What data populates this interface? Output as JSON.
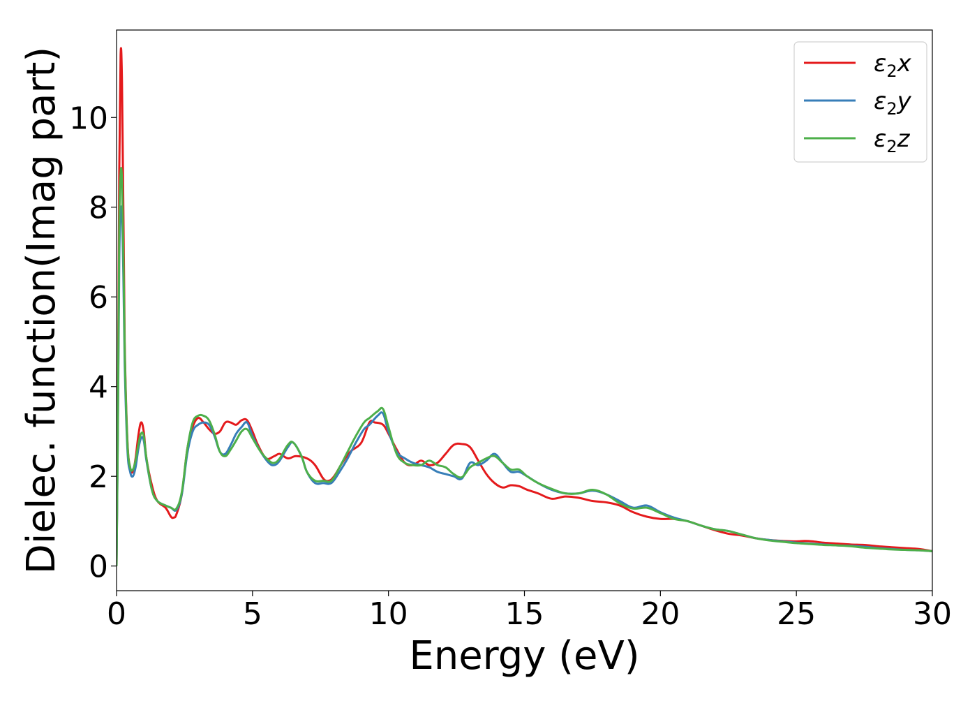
{
  "chart_data": {
    "type": "line",
    "title": "",
    "xlabel": "Energy (eV)",
    "ylabel": "Dielec. function(Imag part)",
    "xlim": [
      0,
      30
    ],
    "ylim": [
      -0.55,
      11.95
    ],
    "xticks": [
      0,
      5,
      10,
      15,
      20,
      25,
      30
    ],
    "yticks": [
      0,
      2,
      4,
      6,
      8,
      10
    ],
    "xtick_labels": [
      "0",
      "5",
      "10",
      "15",
      "20",
      "25",
      "30"
    ],
    "ytick_labels": [
      "0",
      "2",
      "4",
      "6",
      "8",
      "10"
    ],
    "grid": false,
    "legend_position": "top-right",
    "series": [
      {
        "name": "ε2x",
        "legend_base": "ε",
        "legend_sub": "2",
        "legend_var": "x",
        "color": "#e41a1c",
        "x": [
          0,
          0.05,
          0.1,
          0.15,
          0.2,
          0.25,
          0.3,
          0.4,
          0.5,
          0.6,
          0.7,
          0.8,
          0.9,
          1.0,
          1.1,
          1.3,
          1.5,
          1.8,
          2.0,
          2.1,
          2.2,
          2.4,
          2.6,
          2.8,
          3.0,
          3.2,
          3.4,
          3.6,
          3.8,
          4.0,
          4.2,
          4.4,
          4.6,
          4.8,
          5.0,
          5.2,
          5.5,
          5.8,
          6.0,
          6.3,
          6.6,
          7.0,
          7.3,
          7.6,
          7.8,
          8.0,
          8.3,
          8.6,
          9.0,
          9.3,
          9.5,
          9.8,
          10.0,
          10.3,
          10.6,
          10.9,
          11.2,
          11.5,
          11.8,
          12.1,
          12.4,
          12.7,
          13.0,
          13.3,
          13.6,
          13.9,
          14.2,
          14.5,
          14.8,
          15.1,
          15.5,
          16.0,
          16.5,
          17.0,
          17.5,
          18.0,
          18.5,
          19.0,
          19.5,
          20.0,
          20.5,
          21.0,
          21.5,
          22.0,
          22.5,
          23.0,
          23.5,
          24.0,
          24.5,
          25.0,
          25.3,
          25.6,
          26.0,
          26.5,
          27.0,
          27.5,
          28.0,
          28.5,
          29.0,
          29.5,
          30.0
        ],
        "values": [
          0,
          3.5,
          8.8,
          11.4,
          10.8,
          8.0,
          5.0,
          2.8,
          2.2,
          2.1,
          2.4,
          2.9,
          3.2,
          3.0,
          2.4,
          1.8,
          1.45,
          1.3,
          1.1,
          1.08,
          1.15,
          1.6,
          2.6,
          3.1,
          3.3,
          3.2,
          3.05,
          2.95,
          3.0,
          3.2,
          3.2,
          3.15,
          3.25,
          3.25,
          3.0,
          2.7,
          2.4,
          2.45,
          2.5,
          2.4,
          2.45,
          2.4,
          2.25,
          1.95,
          1.9,
          2.0,
          2.3,
          2.55,
          2.75,
          3.2,
          3.2,
          3.15,
          2.95,
          2.6,
          2.3,
          2.25,
          2.35,
          2.25,
          2.3,
          2.5,
          2.7,
          2.72,
          2.65,
          2.35,
          2.05,
          1.85,
          1.75,
          1.8,
          1.78,
          1.7,
          1.62,
          1.5,
          1.55,
          1.52,
          1.45,
          1.42,
          1.35,
          1.2,
          1.1,
          1.05,
          1.05,
          1.0,
          0.9,
          0.8,
          0.72,
          0.68,
          0.62,
          0.58,
          0.56,
          0.55,
          0.56,
          0.55,
          0.52,
          0.5,
          0.48,
          0.47,
          0.44,
          0.42,
          0.4,
          0.38,
          0.33
        ]
      },
      {
        "name": "ε2y",
        "legend_base": "ε",
        "legend_sub": "2",
        "legend_var": "y",
        "color": "#377eb8",
        "x": [
          0,
          0.05,
          0.1,
          0.15,
          0.2,
          0.25,
          0.3,
          0.4,
          0.5,
          0.6,
          0.7,
          0.8,
          0.9,
          1.0,
          1.1,
          1.3,
          1.5,
          1.8,
          2.0,
          2.2,
          2.4,
          2.6,
          2.8,
          3.0,
          3.2,
          3.4,
          3.6,
          3.8,
          4.0,
          4.2,
          4.4,
          4.6,
          4.8,
          5.0,
          5.3,
          5.6,
          5.8,
          6.0,
          6.3,
          6.5,
          6.8,
          7.0,
          7.3,
          7.6,
          7.9,
          8.2,
          8.5,
          8.8,
          9.1,
          9.3,
          9.6,
          9.8,
          10.0,
          10.3,
          10.6,
          10.9,
          11.2,
          11.5,
          11.8,
          12.1,
          12.4,
          12.7,
          13.0,
          13.3,
          13.6,
          13.9,
          14.2,
          14.5,
          14.8,
          15.1,
          15.5,
          16.0,
          16.5,
          17.0,
          17.5,
          18.0,
          18.5,
          19.0,
          19.5,
          20.0,
          20.5,
          21.0,
          21.5,
          22.0,
          22.5,
          23.0,
          23.5,
          24.0,
          24.5,
          25.0,
          25.5,
          26.0,
          26.5,
          27.0,
          27.5,
          28.0,
          28.5,
          29.0,
          29.5,
          30.0
        ],
        "values": [
          0,
          3.0,
          6.8,
          7.9,
          7.8,
          6.5,
          4.5,
          2.6,
          2.1,
          2.0,
          2.2,
          2.6,
          2.85,
          2.8,
          2.35,
          1.7,
          1.45,
          1.35,
          1.3,
          1.25,
          1.6,
          2.5,
          3.0,
          3.15,
          3.2,
          3.15,
          2.9,
          2.55,
          2.5,
          2.7,
          2.95,
          3.1,
          3.2,
          2.9,
          2.55,
          2.3,
          2.25,
          2.35,
          2.65,
          2.75,
          2.45,
          2.1,
          1.85,
          1.85,
          1.85,
          2.1,
          2.4,
          2.75,
          3.05,
          3.15,
          3.35,
          3.4,
          3.0,
          2.55,
          2.4,
          2.3,
          2.25,
          2.2,
          2.1,
          2.05,
          2.0,
          1.95,
          2.3,
          2.25,
          2.35,
          2.5,
          2.3,
          2.1,
          2.1,
          2.0,
          1.85,
          1.7,
          1.62,
          1.62,
          1.68,
          1.6,
          1.45,
          1.3,
          1.35,
          1.2,
          1.08,
          1.0,
          0.9,
          0.82,
          0.78,
          0.7,
          0.62,
          0.58,
          0.55,
          0.52,
          0.5,
          0.48,
          0.46,
          0.45,
          0.43,
          0.4,
          0.38,
          0.36,
          0.35,
          0.33
        ]
      },
      {
        "name": "ε2z",
        "legend_base": "ε",
        "legend_sub": "2",
        "legend_var": "z",
        "color": "#4daf4a",
        "x": [
          0,
          0.05,
          0.1,
          0.15,
          0.2,
          0.25,
          0.3,
          0.4,
          0.5,
          0.6,
          0.7,
          0.8,
          0.9,
          1.0,
          1.1,
          1.3,
          1.5,
          1.8,
          2.0,
          2.2,
          2.4,
          2.6,
          2.8,
          3.0,
          3.2,
          3.4,
          3.6,
          3.8,
          4.0,
          4.2,
          4.4,
          4.6,
          4.8,
          5.0,
          5.3,
          5.6,
          5.8,
          6.0,
          6.3,
          6.5,
          6.8,
          7.0,
          7.3,
          7.6,
          7.9,
          8.2,
          8.5,
          8.8,
          9.1,
          9.3,
          9.6,
          9.8,
          10.0,
          10.3,
          10.6,
          10.9,
          11.2,
          11.5,
          11.8,
          12.1,
          12.4,
          12.7,
          13.0,
          13.3,
          13.6,
          13.9,
          14.2,
          14.5,
          14.8,
          15.1,
          15.5,
          16.0,
          16.5,
          17.0,
          17.5,
          18.0,
          18.5,
          19.0,
          19.5,
          20.0,
          20.5,
          21.0,
          21.5,
          22.0,
          22.5,
          23.0,
          23.5,
          24.0,
          24.5,
          25.0,
          25.5,
          26.0,
          26.5,
          27.0,
          27.5,
          28.0,
          28.5,
          29.0,
          29.5,
          30.0
        ],
        "values": [
          0,
          3.2,
          7.5,
          8.75,
          8.6,
          7.0,
          4.8,
          2.75,
          2.2,
          2.15,
          2.35,
          2.7,
          2.95,
          2.9,
          2.4,
          1.7,
          1.45,
          1.35,
          1.3,
          1.28,
          1.65,
          2.6,
          3.2,
          3.35,
          3.35,
          3.25,
          2.95,
          2.55,
          2.45,
          2.6,
          2.8,
          3.0,
          3.05,
          2.85,
          2.55,
          2.35,
          2.3,
          2.4,
          2.7,
          2.75,
          2.45,
          2.1,
          1.9,
          1.9,
          1.9,
          2.2,
          2.55,
          2.9,
          3.2,
          3.3,
          3.45,
          3.5,
          3.1,
          2.5,
          2.3,
          2.25,
          2.25,
          2.35,
          2.25,
          2.2,
          2.05,
          1.98,
          2.2,
          2.3,
          2.4,
          2.45,
          2.3,
          2.15,
          2.15,
          2.0,
          1.85,
          1.72,
          1.62,
          1.62,
          1.7,
          1.6,
          1.4,
          1.28,
          1.3,
          1.18,
          1.05,
          1.0,
          0.9,
          0.82,
          0.78,
          0.7,
          0.62,
          0.57,
          0.54,
          0.51,
          0.49,
          0.47,
          0.46,
          0.44,
          0.41,
          0.39,
          0.37,
          0.36,
          0.35,
          0.33
        ]
      }
    ]
  }
}
